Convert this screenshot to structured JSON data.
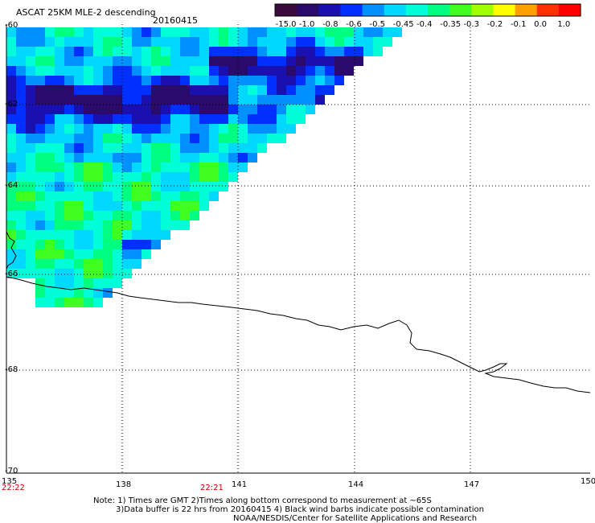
{
  "title": {
    "product": "ASCAT 25KM MLE-2 descending",
    "date": "20160415"
  },
  "colorbar": {
    "labels": [
      "-15.0",
      "-1.0",
      "-0.8",
      "-0.6",
      "-0.5",
      "-0.45",
      "-0.4",
      "-0.35",
      "-0.3",
      "-0.2",
      "-0.1",
      "0.0",
      "1.0"
    ],
    "colors": [
      "#3a0a3a",
      "#2a0a6a",
      "#1a10b0",
      "#0030ff",
      "#0090ff",
      "#00d8ff",
      "#00ffd8",
      "#00ff80",
      "#40ff20",
      "#a0ff00",
      "#ffff00",
      "#ffa000",
      "#ff3000",
      "#ff0000"
    ]
  },
  "axes": {
    "lon_ticks": [
      "135",
      "138",
      "141",
      "144",
      "147",
      "150"
    ],
    "lat_ticks": [
      "-60",
      "-62",
      "-64",
      "-66",
      "-68",
      "-70"
    ],
    "time_labels": [
      "22:22",
      "22:21"
    ]
  },
  "notes": [
    "Note: 1) Times are GMT 2)Times along bottom correspond to measurement at ~65S",
    "3)Data buffer is 22 hrs from 20160415 4) Black wind barbs indicate possible contamination",
    "NOAA/NESDIS/Center for Satellite Applications and Research"
  ]
}
